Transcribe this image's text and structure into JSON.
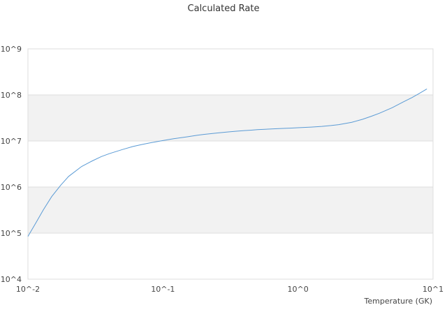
{
  "chart_data": {
    "type": "line",
    "title": "Calculated Rate",
    "xlabel": "Temperature (GK)",
    "ylabel": "",
    "x_scale": "log",
    "y_scale": "log",
    "xlim": [
      0.01,
      10
    ],
    "ylim": [
      10000,
      1000000000
    ],
    "x_ticks": [
      "10^-2",
      "10^-1",
      "10^0",
      "10^1"
    ],
    "y_ticks": [
      "10^4",
      "10^5",
      "10^6",
      "10^7",
      "10^8",
      "10^9"
    ],
    "grid": "alternating horizontal bands",
    "legend": "none",
    "series": [
      {
        "color": "#5b9bd5",
        "x": [
          0.01,
          0.0115,
          0.013,
          0.015,
          0.0175,
          0.02,
          0.025,
          0.03,
          0.035,
          0.04,
          0.05,
          0.06,
          0.07,
          0.08,
          0.1,
          0.12,
          0.15,
          0.18,
          0.2,
          0.25,
          0.3,
          0.35,
          0.4,
          0.45,
          0.5,
          0.6,
          0.7,
          0.8,
          0.9,
          1.0,
          1.25,
          1.5,
          1.75,
          2.0,
          2.5,
          3.0,
          3.5,
          4.0,
          5.0,
          6.0,
          7.0,
          8.0,
          9.0
        ],
        "y": [
          85000,
          170000,
          320000,
          620000,
          1100000,
          1700000,
          2800000,
          3700000,
          4600000,
          5300000,
          6500000,
          7600000,
          8400000,
          9100000,
          10200000,
          11200000,
          12300000,
          13300000,
          13900000,
          14900000,
          15700000,
          16300000,
          16800000,
          17200000,
          17600000,
          18100000,
          18500000,
          18800000,
          19100000,
          19400000,
          20000000,
          20700000,
          21600000,
          22600000,
          25500000,
          29500000,
          34500000,
          40000000,
          53000000,
          70000000,
          88000000,
          110000000,
          135000000
        ]
      }
    ]
  }
}
